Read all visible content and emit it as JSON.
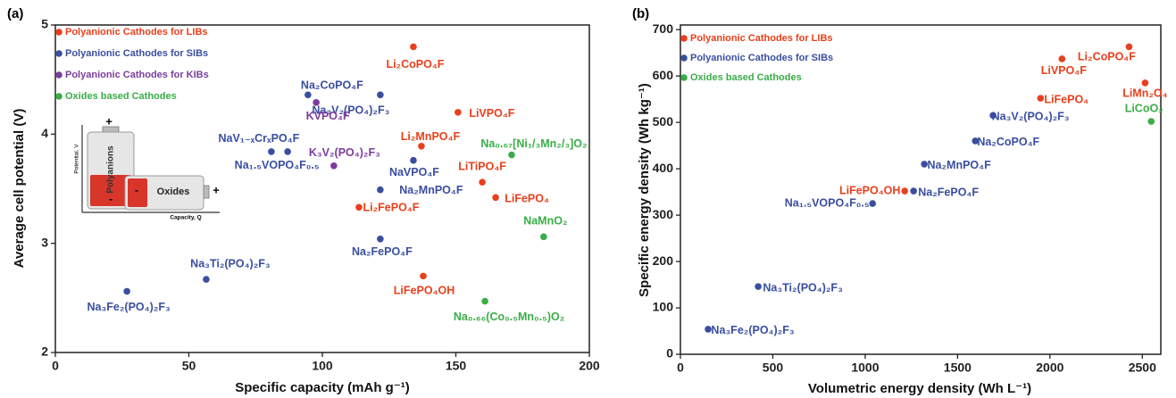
{
  "chart_data": [
    {
      "type": "scatter",
      "panel_label": "(a)",
      "xlabel": "Specific capacity (mAh g⁻¹)",
      "ylabel": "Average cell potential (V)",
      "xlim": [
        0,
        200
      ],
      "ylim": [
        2,
        5
      ],
      "xticks": [
        0,
        50,
        100,
        150,
        200
      ],
      "yticks": [
        2,
        3,
        4,
        5
      ],
      "series": [
        {
          "name": "Polyanionic Cathodes for LIBs",
          "color": "#e8401c",
          "x": [
            134.1,
            150.8,
            137.1,
            159.9,
            164.9,
            113.7,
            137.8
          ],
          "values": [
            4.8,
            4.2,
            3.89,
            3.56,
            3.42,
            3.33,
            2.7
          ],
          "labels": [
            "Li₂CoPO₄F",
            "LiVPO₄F",
            "Li₂MnPO₄F",
            "LiTiPO₄F",
            "LiFePO₄",
            "Li₂FePO₄F",
            "LiFePO₄OH"
          ]
        },
        {
          "name": "Polyanionic Cathodes for SIBs",
          "color": "#3a4ea0",
          "x": [
            94.6,
            121.7,
            80.9,
            87.0,
            134.1,
            121.7,
            121.7,
            56.5,
            26.8
          ],
          "values": [
            4.36,
            4.36,
            3.84,
            3.84,
            3.76,
            3.49,
            3.04,
            2.67,
            2.56
          ],
          "labels": [
            "Na₂CoPO₄F",
            "Na₃V₂(PO₄)₂F₃",
            "NaV₁₋ₓCrₓPO₄F",
            "Na₁.₅VOPO₄F₀.₅",
            "NaVPO₄F",
            "Na₂MnPO₄F",
            "Na₂FePO₄F",
            "Na₃Ti₂(PO₄)₂F₃",
            "Na₃Fe₂(PO₄)₂F₃"
          ]
        },
        {
          "name": "Polyanionic Cathodes for KIBs",
          "color": "#7b3d9c",
          "x": [
            97.7,
            104.3
          ],
          "values": [
            4.29,
            3.71
          ],
          "labels": [
            "KVPO₄F",
            "K₃V₂(PO₄)₂F₃"
          ]
        },
        {
          "name": "Oxides based Cathodes",
          "color": "#3aad48",
          "x": [
            170.9,
            182.9,
            160.9
          ],
          "values": [
            3.81,
            3.06,
            2.47
          ],
          "labels": [
            "Na₀.₆₇[Ni₁/₃Mn₂/₃]O₂",
            "NaMnO₂",
            "Na₀.₆₆(Co₀.₅Mn₀.₅)O₂"
          ]
        }
      ]
    },
    {
      "type": "scatter",
      "panel_label": "(b)",
      "xlabel": "Volumetric energy density (Wh L⁻¹)",
      "ylabel": "Specific energy density (Wh kg⁻¹)",
      "xlim": [
        0,
        2600
      ],
      "ylim": [
        0,
        710
      ],
      "xticks": [
        0,
        500,
        1000,
        1500,
        2000,
        2500
      ],
      "yticks": [
        0,
        100,
        200,
        300,
        400,
        500,
        600,
        700
      ],
      "series": [
        {
          "name": "Polyanionic Cathodes for LIBs",
          "color": "#e8401c",
          "x": [
            2428,
            2065,
            2515,
            1949,
            1214
          ],
          "values": [
            663,
            637,
            585,
            552,
            352
          ],
          "labels": [
            "Li₂CoPO₄F",
            "LiVPO₄F",
            "LiMn₂O₄",
            "LiFePO₄",
            "LiFePO₄OH"
          ]
        },
        {
          "name": "Polyanionic Cathodes for SIBs",
          "color": "#3a4ea0",
          "x": [
            1692,
            1596,
            1320,
            1262,
            1040,
            421,
            150
          ],
          "values": [
            515,
            460,
            410,
            352,
            325,
            146,
            54
          ],
          "labels": [
            "Na₃V₂(PO₄)₂F₃",
            "Na₂CoPO₄F",
            "Na₂MnPO₄F",
            "Na₂FePO₄F",
            "Na₁.₅VOPO₄F₀.₅",
            "Na₃Ti₂(PO₄)₂F₃",
            "Na₃Fe₂(PO₄)₂F₃"
          ]
        },
        {
          "name": "Oxides based Cathodes",
          "color": "#3aad48",
          "x": [
            2548
          ],
          "values": [
            502
          ],
          "labels": [
            "LiCoO₂"
          ]
        }
      ]
    }
  ],
  "inset": {
    "potential": "Potential, V",
    "capacity": "Capacity, Q",
    "polyanions": "Polyanions",
    "oxides": "Oxides",
    "plus": "+",
    "minus": "-"
  }
}
